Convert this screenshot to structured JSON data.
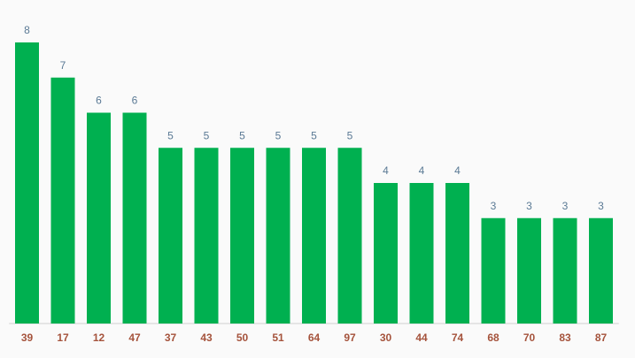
{
  "chart_data": {
    "type": "bar",
    "categories": [
      "39",
      "17",
      "12",
      "47",
      "37",
      "43",
      "50",
      "51",
      "64",
      "97",
      "30",
      "44",
      "74",
      "68",
      "70",
      "83",
      "87"
    ],
    "values": [
      8,
      7,
      6,
      6,
      5,
      5,
      5,
      5,
      5,
      5,
      4,
      4,
      4,
      3,
      3,
      3,
      3
    ],
    "color": "#00b050",
    "ylim": [
      0,
      8
    ]
  }
}
